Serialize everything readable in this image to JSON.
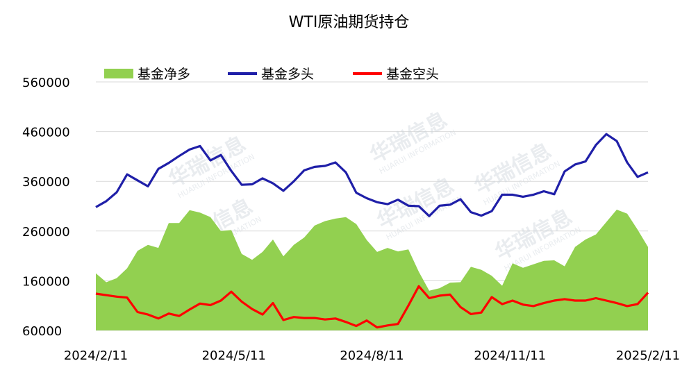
{
  "chart_data": {
    "type": "area+line",
    "title": "WTI原油期货持仓",
    "xlabel": "",
    "ylabel": "",
    "ylim": [
      60000,
      560000
    ],
    "yticks": [
      60000,
      160000,
      260000,
      360000,
      460000,
      560000
    ],
    "xtick_labels": [
      "2024/2/11",
      "2024/5/11",
      "2024/8/11",
      "2024/11/11",
      "2025/2/11"
    ],
    "legend_position": "top",
    "grid": true,
    "colors": {
      "net": "#92d050",
      "long": "#1f1fa8",
      "short": "#ff0000"
    },
    "series": [
      {
        "name": "基金净多",
        "kind": "area",
        "values": [
          175000,
          157000,
          165000,
          185000,
          220000,
          232000,
          226000,
          276000,
          276000,
          302000,
          297000,
          288000,
          260000,
          262000,
          214000,
          202000,
          218000,
          243000,
          209000,
          232000,
          247000,
          271000,
          280000,
          285000,
          288000,
          274000,
          242000,
          218000,
          226000,
          219000,
          223000,
          178000,
          140000,
          145000,
          156000,
          157000,
          188000,
          182000,
          170000,
          150000,
          195000,
          186000,
          193000,
          200000,
          201000,
          189000,
          228000,
          243000,
          253000,
          278000,
          303000,
          295000,
          263000,
          228000
        ]
      },
      {
        "name": "基金多头",
        "kind": "line",
        "values": [
          308000,
          320000,
          338000,
          374000,
          362000,
          350000,
          385000,
          397000,
          411000,
          424000,
          431000,
          402000,
          413000,
          381000,
          353000,
          354000,
          366000,
          356000,
          341000,
          360000,
          382000,
          389000,
          391000,
          398000,
          378000,
          337000,
          326000,
          318000,
          314000,
          323000,
          311000,
          310000,
          290000,
          311000,
          313000,
          324000,
          298000,
          291000,
          300000,
          333000,
          333000,
          329000,
          333000,
          340000,
          334000,
          380000,
          394000,
          400000,
          433000,
          455000,
          441000,
          398000,
          369000,
          378000
        ]
      },
      {
        "name": "基金空头",
        "kind": "line",
        "values": [
          134000,
          131000,
          128000,
          126000,
          97000,
          92000,
          84000,
          94000,
          89000,
          102000,
          114000,
          111000,
          120000,
          138000,
          118000,
          103000,
          92000,
          115000,
          81000,
          87000,
          85000,
          85000,
          82000,
          84000,
          77000,
          69000,
          80000,
          66000,
          70000,
          73000,
          110000,
          149000,
          125000,
          130000,
          132000,
          107000,
          93000,
          96000,
          127000,
          113000,
          120000,
          112000,
          109000,
          115000,
          120000,
          123000,
          120000,
          120000,
          125000,
          120000,
          115000,
          109000,
          113000,
          136000
        ]
      }
    ]
  },
  "watermark": {
    "brand": "华瑞信息",
    "sub": "HUARUI INFORMATION"
  }
}
